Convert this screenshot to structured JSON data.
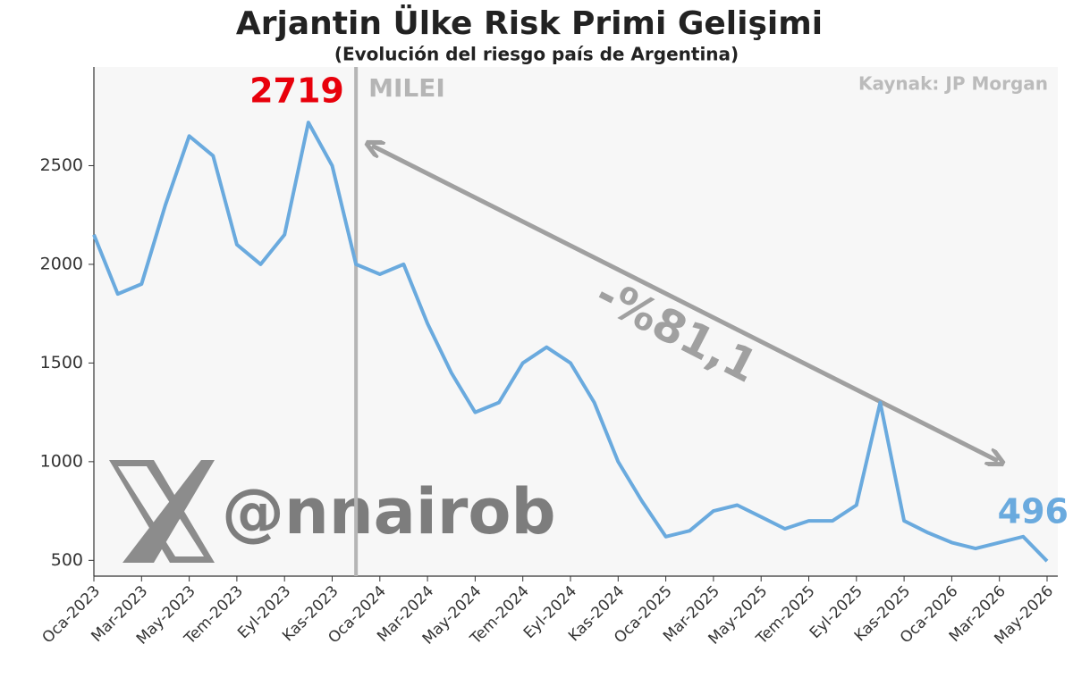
{
  "chart_data": {
    "type": "line",
    "title": "Arjantin Ülke Risk Primi Gelişimi",
    "subtitle": "(Evolución del riesgo país de Argentina)",
    "source": "Kaynak: JP Morgan",
    "watermark": "@nnairob",
    "change_label": "-%81,1",
    "vline": {
      "x": "2023-12",
      "label": "MILEI"
    },
    "x": [
      "2023-01",
      "2023-02",
      "2023-03",
      "2023-04",
      "2023-05",
      "2023-06",
      "2023-07",
      "2023-08",
      "2023-09",
      "2023-10",
      "2023-11",
      "2023-12",
      "2024-01",
      "2024-02",
      "2024-03",
      "2024-04",
      "2024-05",
      "2024-06",
      "2024-07",
      "2024-08",
      "2024-09",
      "2024-10",
      "2024-11",
      "2024-12",
      "2025-01",
      "2025-02",
      "2025-03",
      "2025-04",
      "2025-05",
      "2025-06",
      "2025-07",
      "2025-08",
      "2025-09",
      "2025-10",
      "2025-11",
      "2025-12",
      "2026-01",
      "2026-02",
      "2026-03",
      "2026-04",
      "2026-05"
    ],
    "values": [
      2150,
      1850,
      1900,
      2300,
      2650,
      2550,
      2100,
      2000,
      2150,
      2719,
      2500,
      2000,
      1950,
      2000,
      1700,
      1450,
      1250,
      1300,
      1500,
      1580,
      1500,
      1300,
      1000,
      800,
      620,
      650,
      750,
      780,
      720,
      660,
      700,
      700,
      780,
      1300,
      700,
      640,
      590,
      560,
      590,
      620,
      496
    ],
    "color": "#6aaade",
    "highlight_color": "#e8000b",
    "ylim": [
      420,
      3000
    ],
    "yticks": [
      500,
      1000,
      1500,
      2000,
      2500
    ],
    "xticks": [
      {
        "value": "2023-01",
        "label": "Oca-2023"
      },
      {
        "value": "2023-03",
        "label": "Mar-2023"
      },
      {
        "value": "2023-05",
        "label": "May-2023"
      },
      {
        "value": "2023-07",
        "label": "Tem-2023"
      },
      {
        "value": "2023-09",
        "label": "Eyl-2023"
      },
      {
        "value": "2023-11",
        "label": "Kas-2023"
      },
      {
        "value": "2024-01",
        "label": "Oca-2024"
      },
      {
        "value": "2024-03",
        "label": "Mar-2024"
      },
      {
        "value": "2024-05",
        "label": "May-2024"
      },
      {
        "value": "2024-07",
        "label": "Tem-2024"
      },
      {
        "value": "2024-09",
        "label": "Eyl-2024"
      },
      {
        "value": "2024-11",
        "label": "Kas-2024"
      },
      {
        "value": "2025-01",
        "label": "Oca-2025"
      },
      {
        "value": "2025-03",
        "label": "Mar-2025"
      },
      {
        "value": "2025-05",
        "label": "May-2025"
      },
      {
        "value": "2025-07",
        "label": "Tem-2025"
      },
      {
        "value": "2025-09",
        "label": "Eyl-2025"
      },
      {
        "value": "2025-11",
        "label": "Kas-2025"
      },
      {
        "value": "2026-01",
        "label": "Oca-2026"
      },
      {
        "value": "2026-03",
        "label": "Mar-2026"
      },
      {
        "value": "2026-05",
        "label": "May-2026"
      }
    ],
    "grid": false
  }
}
